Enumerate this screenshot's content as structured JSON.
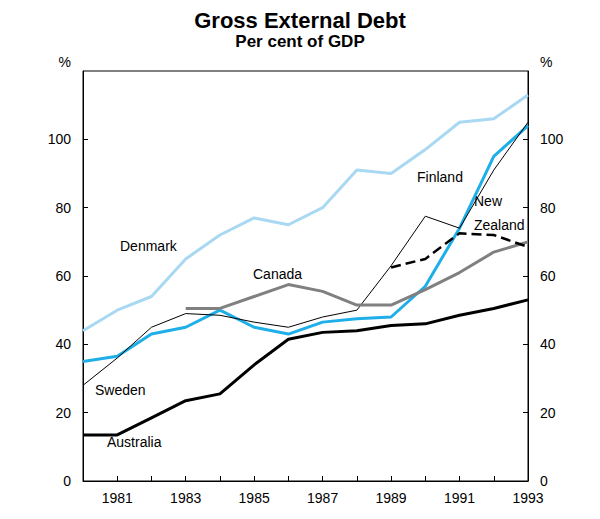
{
  "chart_data": {
    "type": "line",
    "title": "Gross External Debt",
    "subtitle": "Per cent of GDP",
    "ylabel": "%",
    "categories": [
      null,
      "1981",
      null,
      "1983",
      null,
      "1985",
      null,
      "1987",
      null,
      "1989",
      null,
      "1991",
      null,
      "1993"
    ],
    "ylim": [
      0,
      120
    ],
    "yticks": [
      0,
      20,
      40,
      60,
      80,
      100
    ],
    "y2lim": [
      0,
      120
    ],
    "y2ticks": [
      0,
      20,
      40,
      60,
      80,
      100
    ],
    "grid": false,
    "series": [
      {
        "name": "Denmark",
        "color": "#a9d9f2",
        "line_style": "solid",
        "values": [
          44,
          50,
          54,
          65,
          72,
          77,
          75,
          80,
          91,
          90,
          97,
          105,
          106,
          113
        ]
      },
      {
        "name": "Finland",
        "color": "#1eaee8",
        "line_style": "solid",
        "values": [
          35,
          36.5,
          43,
          45,
          50,
          45,
          43,
          46.5,
          47.5,
          48,
          57,
          74,
          95,
          104
        ]
      },
      {
        "name": "Sweden",
        "color": "#000000",
        "line_style": "thin",
        "values": [
          28,
          36,
          45,
          49,
          48.5,
          46.5,
          45,
          48,
          50,
          63,
          77.5,
          74,
          91,
          105
        ]
      },
      {
        "name": "Canada",
        "color": "#808080",
        "line_style": "solid",
        "values": [
          null,
          null,
          null,
          50.5,
          50.5,
          54,
          57.5,
          55.5,
          51.5,
          51.5,
          56,
          61,
          67,
          70
        ]
      },
      {
        "name": "New Zealand",
        "color": "#000000",
        "line_style": "dashed",
        "values": [
          null,
          null,
          null,
          null,
          null,
          null,
          null,
          null,
          null,
          62.5,
          65,
          72.5,
          72,
          68.5
        ]
      },
      {
        "name": "Australia",
        "color": "#000000",
        "line_style": "thick",
        "values": [
          13.5,
          13.5,
          18.5,
          23.5,
          25.5,
          34,
          41.5,
          43.5,
          44,
          45.5,
          46,
          48.5,
          50.5,
          53
        ]
      }
    ]
  }
}
